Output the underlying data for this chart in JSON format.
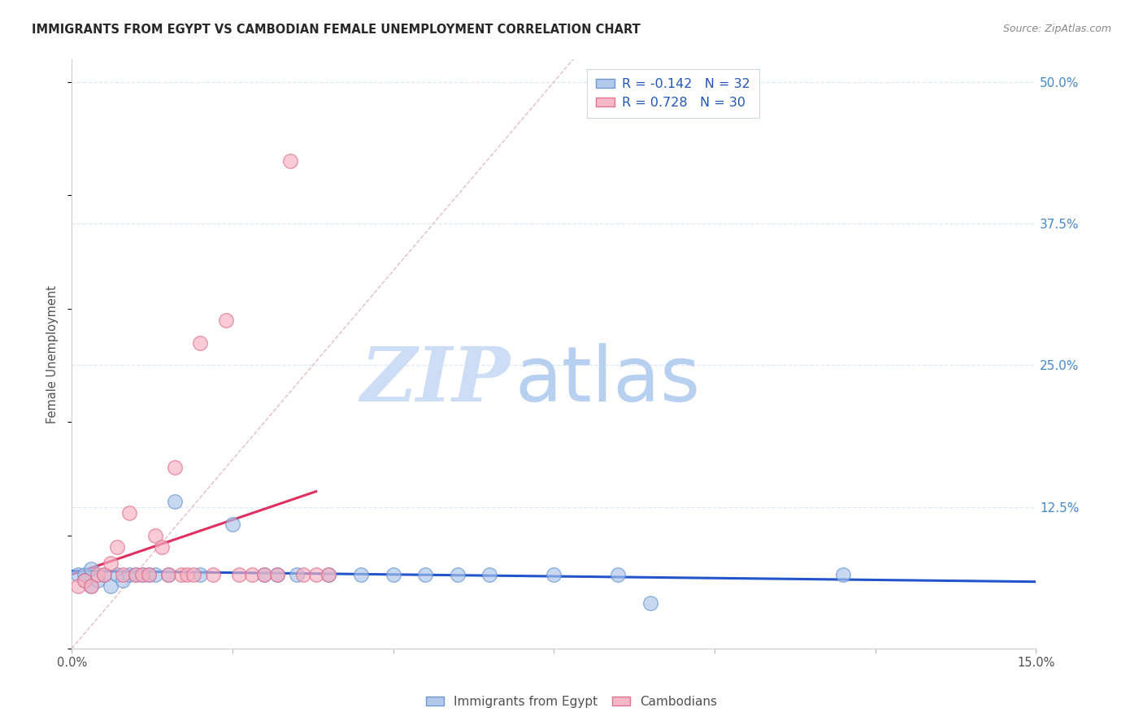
{
  "title": "IMMIGRANTS FROM EGYPT VS CAMBODIAN FEMALE UNEMPLOYMENT CORRELATION CHART",
  "source": "Source: ZipAtlas.com",
  "ylabel": "Female Unemployment",
  "legend_labels": [
    "Immigrants from Egypt",
    "Cambodians"
  ],
  "legend_r": [
    -0.142,
    0.728
  ],
  "legend_n": [
    32,
    30
  ],
  "xlim": [
    0.0,
    0.15
  ],
  "ylim": [
    0.0,
    0.52
  ],
  "ytick_vals": [
    0.0,
    0.125,
    0.25,
    0.375,
    0.5
  ],
  "ytick_labels": [
    "",
    "12.5%",
    "25.0%",
    "37.5%",
    "50.0%"
  ],
  "xtick_vals": [
    0.0,
    0.025,
    0.05,
    0.075,
    0.1,
    0.125,
    0.15
  ],
  "xtick_labels": [
    "0.0%",
    "",
    "",
    "",
    "",
    "",
    "15.0%"
  ],
  "blue_fill": "#aac4e8",
  "pink_fill": "#f5b0c0",
  "blue_edge": "#6090d0",
  "pink_edge": "#e06888",
  "blue_line": "#2255cc",
  "pink_line": "#e03060",
  "diag_color": "#d8a0b0",
  "grid_color": "#dde8f5",
  "title_color": "#282828",
  "source_color": "#888888",
  "water_zip_color": "#ccddf5",
  "water_atlas_color": "#b8d0f0",
  "blue_x": [
    0.001,
    0.002,
    0.002,
    0.003,
    0.003,
    0.004,
    0.005,
    0.006,
    0.007,
    0.008,
    0.009,
    0.01,
    0.011,
    0.012,
    0.013,
    0.015,
    0.016,
    0.02,
    0.025,
    0.03,
    0.032,
    0.035,
    0.04,
    0.045,
    0.05,
    0.055,
    0.06,
    0.065,
    0.075,
    0.085,
    0.09,
    0.12
  ],
  "blue_y": [
    0.065,
    0.065,
    0.06,
    0.07,
    0.055,
    0.06,
    0.065,
    0.055,
    0.065,
    0.06,
    0.065,
    0.065,
    0.065,
    0.065,
    0.065,
    0.065,
    0.13,
    0.065,
    0.11,
    0.065,
    0.065,
    0.065,
    0.065,
    0.065,
    0.065,
    0.065,
    0.065,
    0.065,
    0.065,
    0.065,
    0.04,
    0.065
  ],
  "pink_x": [
    0.001,
    0.002,
    0.003,
    0.004,
    0.005,
    0.006,
    0.007,
    0.008,
    0.009,
    0.01,
    0.011,
    0.012,
    0.013,
    0.014,
    0.015,
    0.016,
    0.017,
    0.018,
    0.019,
    0.02,
    0.022,
    0.024,
    0.026,
    0.028,
    0.03,
    0.032,
    0.034,
    0.036,
    0.038,
    0.04
  ],
  "pink_y": [
    0.055,
    0.06,
    0.055,
    0.065,
    0.065,
    0.075,
    0.09,
    0.065,
    0.12,
    0.065,
    0.065,
    0.065,
    0.1,
    0.09,
    0.065,
    0.16,
    0.065,
    0.065,
    0.065,
    0.27,
    0.065,
    0.29,
    0.065,
    0.065,
    0.065,
    0.065,
    0.43,
    0.065,
    0.065,
    0.065
  ]
}
